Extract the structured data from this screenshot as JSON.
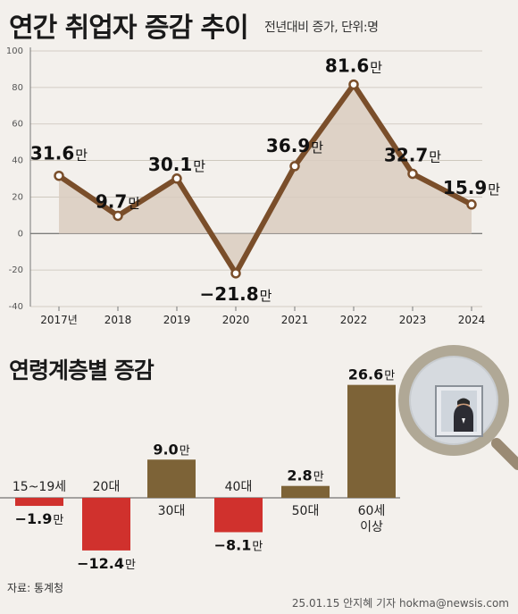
{
  "header": {
    "title": "연간 취업자 증감 추이",
    "subtitle": "전년대비 증가, 단위:명"
  },
  "bar_section": {
    "title": "연령계층별 증감"
  },
  "footer": {
    "source": "자료: 통계청",
    "credit": "25.01.15 안지혜 기자 hokma@newsis.com"
  },
  "colors": {
    "line": "#7a4e2a",
    "area_fill": "#d9ccc0",
    "positive_bar": "#7d6337",
    "negative_bar": "#d0312d",
    "background": "#f3f0ec"
  },
  "chart_data": [
    {
      "type": "line",
      "x": [
        "2017년",
        "2018",
        "2019",
        "2020",
        "2021",
        "2022",
        "2023",
        "2024"
      ],
      "series": [
        {
          "values": [
            31.6,
            9.7,
            30.1,
            -21.8,
            36.9,
            81.6,
            32.7,
            15.9
          ]
        }
      ],
      "value_labels": [
        "31.6",
        "9.7",
        "30.1",
        "−21.8",
        "36.9",
        "81.6",
        "32.7",
        "15.9"
      ],
      "unit_label": "만",
      "yticks": [
        100,
        80,
        60,
        40,
        20,
        0,
        -20,
        -40
      ],
      "ylim": [
        -40,
        100
      ],
      "area_fill": true
    },
    {
      "type": "bar",
      "categories": [
        "15~19세",
        "20대",
        "30대",
        "40대",
        "50대",
        "60세 이상"
      ],
      "category_lines": [
        [
          "15~19세"
        ],
        [
          "20대"
        ],
        [
          "30대"
        ],
        [
          "40대"
        ],
        [
          "50대"
        ],
        [
          "60세",
          "이상"
        ]
      ],
      "values": [
        -1.9,
        -12.4,
        9.0,
        -8.1,
        2.8,
        26.6
      ],
      "value_labels": [
        "−1.9",
        "−12.4",
        "9.0",
        "−8.1",
        "2.8",
        "26.6"
      ],
      "unit_label": "만"
    }
  ]
}
